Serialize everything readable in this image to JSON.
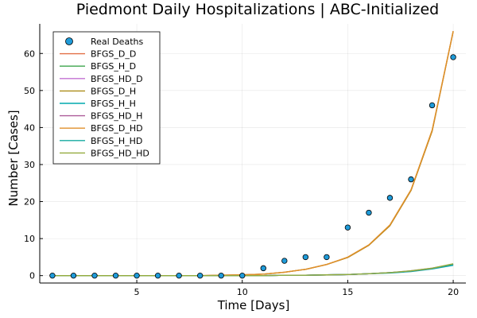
{
  "chart_data": {
    "type": "line",
    "title": "Piedmont Daily Hospitalizations | ABC-Initialized",
    "xlabel": "Time [Days]",
    "ylabel": "Number [Cases]",
    "xlim": [
      0.4,
      20.6
    ],
    "ylim": [
      -2,
      68
    ],
    "xticks": [
      5,
      10,
      15,
      20
    ],
    "yticks": [
      0,
      10,
      20,
      30,
      40,
      50,
      60
    ],
    "grid": true,
    "legend_position": "top-left",
    "scatter": {
      "name": "Real Deaths",
      "color": "#1f9bd9",
      "x": [
        1,
        2,
        3,
        4,
        5,
        6,
        7,
        8,
        9,
        10,
        11,
        12,
        13,
        14,
        15,
        16,
        17,
        18,
        19,
        20
      ],
      "y": [
        0,
        0,
        0,
        0,
        0,
        0,
        0,
        0,
        0,
        0,
        2,
        4,
        5,
        5,
        13,
        17,
        21,
        26,
        46,
        59
      ]
    },
    "x": [
      1,
      2,
      3,
      4,
      5,
      6,
      7,
      8,
      9,
      10,
      11,
      12,
      13,
      14,
      15,
      16,
      17,
      18,
      19,
      20
    ],
    "series": [
      {
        "name": "BFGS_D_D",
        "color": "#e26f46",
        "values": [
          0,
          0,
          0,
          0,
          0,
          0,
          0,
          0,
          0.1,
          0.2,
          0.4,
          0.9,
          1.7,
          3.0,
          4.9,
          8.2,
          13.5,
          23.0,
          39.0,
          66.0
        ]
      },
      {
        "name": "BFGS_H_D",
        "color": "#3da44d",
        "values": [
          0,
          0,
          0,
          0,
          0,
          0,
          0,
          0,
          0,
          0,
          0,
          0.1,
          0.1,
          0.2,
          0.3,
          0.5,
          0.8,
          1.2,
          1.9,
          3.0
        ]
      },
      {
        "name": "BFGS_HD_D",
        "color": "#c271d2",
        "values": [
          0,
          0,
          0,
          0,
          0,
          0,
          0,
          0,
          0,
          0,
          0,
          0.1,
          0.1,
          0.2,
          0.3,
          0.5,
          0.8,
          1.3,
          2.0,
          3.1
        ]
      },
      {
        "name": "BFGS_D_H",
        "color": "#ac8d18",
        "values": [
          0,
          0,
          0,
          0,
          0,
          0,
          0,
          0,
          0.1,
          0.2,
          0.4,
          0.9,
          1.7,
          3.0,
          4.9,
          8.2,
          13.5,
          23.0,
          39.0,
          66.0
        ]
      },
      {
        "name": "BFGS_H_H",
        "color": "#00a9ad",
        "values": [
          0,
          0,
          0,
          0,
          0,
          0,
          0,
          0,
          0,
          0,
          0,
          0.1,
          0.1,
          0.2,
          0.3,
          0.5,
          0.7,
          1.1,
          1.8,
          2.8
        ]
      },
      {
        "name": "BFGS_HD_H",
        "color": "#ad5c9a",
        "values": [
          0,
          0,
          0,
          0,
          0,
          0,
          0,
          0,
          0,
          0,
          0,
          0.1,
          0.1,
          0.2,
          0.3,
          0.5,
          0.8,
          1.2,
          1.9,
          3.0
        ]
      },
      {
        "name": "BFGS_D_HD",
        "color": "#e0902b",
        "values": [
          0,
          0,
          0,
          0,
          0,
          0,
          0,
          0,
          0.1,
          0.2,
          0.4,
          0.9,
          1.7,
          3.0,
          5.0,
          8.3,
          13.7,
          23.2,
          39.3,
          66.0
        ]
      },
      {
        "name": "BFGS_H_HD",
        "color": "#14a9a1",
        "values": [
          0,
          0,
          0,
          0,
          0,
          0,
          0,
          0,
          0,
          0,
          0,
          0.1,
          0.1,
          0.2,
          0.3,
          0.5,
          0.8,
          1.2,
          1.9,
          3.0
        ]
      },
      {
        "name": "BFGS_HD_HD",
        "color": "#94ab3d",
        "values": [
          0,
          0,
          0,
          0,
          0,
          0,
          0,
          0,
          0,
          0,
          0,
          0.1,
          0.1,
          0.2,
          0.3,
          0.5,
          0.8,
          1.3,
          2.0,
          3.2
        ]
      }
    ]
  }
}
